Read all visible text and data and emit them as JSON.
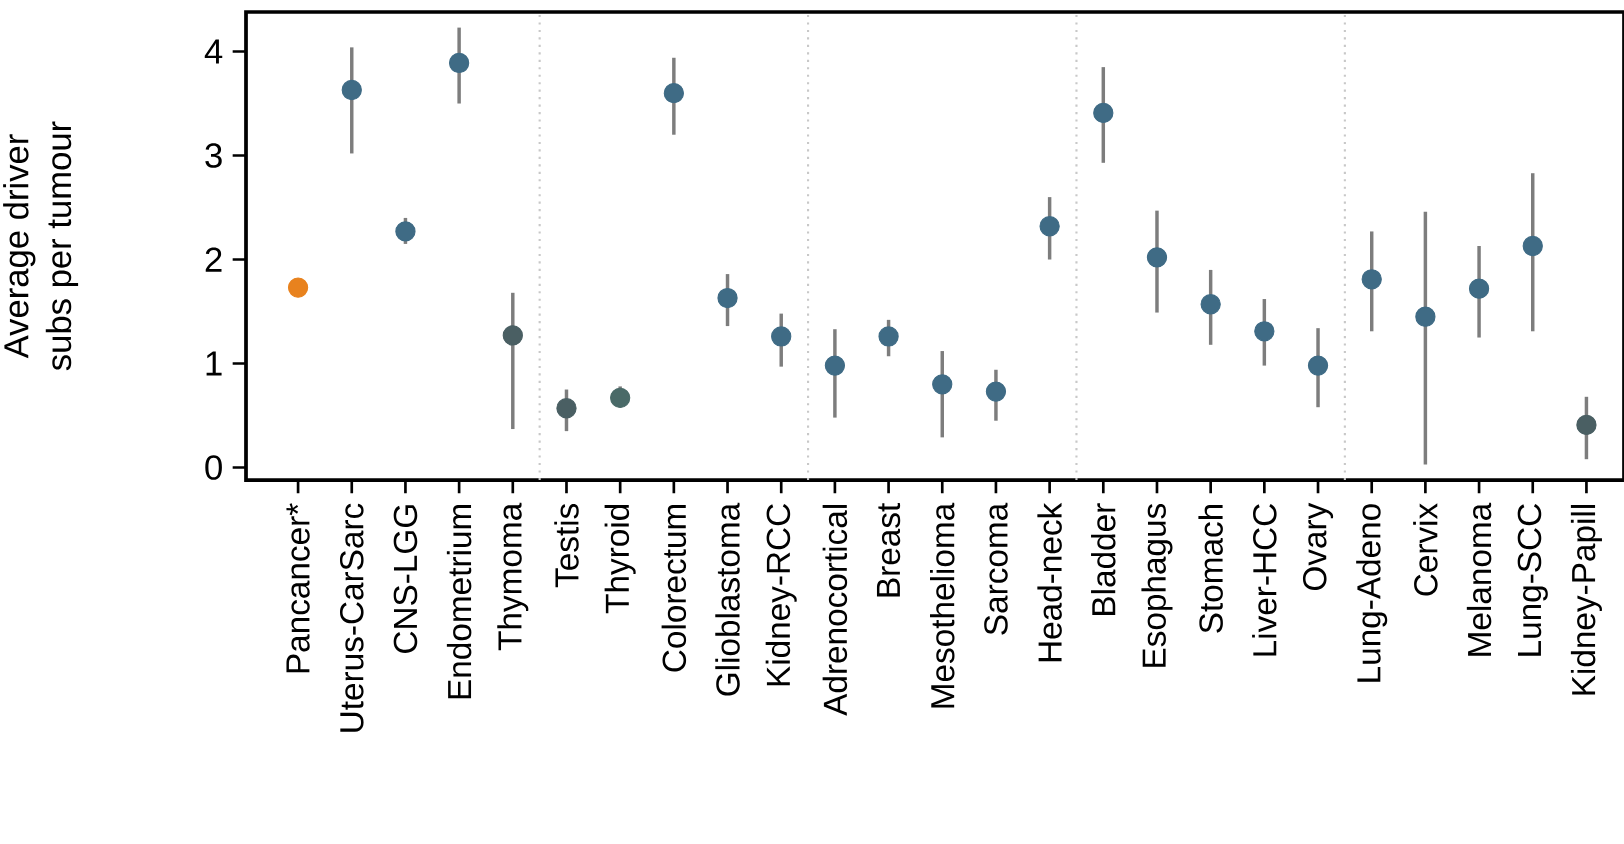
{
  "chart_data": {
    "type": "scatter",
    "ylabel": "Average driver\nsubs per tumour",
    "categories": [
      "Pancancer*",
      "Uterus-CarSarc",
      "CNS-LGG",
      "Endometrium",
      "Thymoma",
      "Testis",
      "Thyroid",
      "Colorectum",
      "Glioblastoma",
      "Kidney-RCC",
      "Adrenocortical",
      "Breast",
      "Mesothelioma",
      "Sarcoma",
      "Head-neck",
      "Bladder",
      "Esophagus",
      "Stomach",
      "Liver-HCC",
      "Ovary",
      "Lung-Adeno",
      "Cervix",
      "Melanoma",
      "Lung-SCC",
      "Kidney-Papill"
    ],
    "values": [
      1.73,
      3.63,
      2.27,
      3.89,
      1.27,
      0.57,
      0.67,
      3.6,
      1.63,
      1.26,
      0.98,
      1.26,
      0.8,
      0.73,
      2.32,
      3.41,
      2.02,
      1.57,
      1.31,
      0.98,
      1.81,
      1.45,
      1.72,
      2.13,
      0.41
    ],
    "errors": [
      null,
      [
        3.02,
        4.04
      ],
      [
        2.15,
        2.4
      ],
      [
        3.5,
        4.23
      ],
      [
        0.37,
        1.68
      ],
      [
        0.35,
        0.75
      ],
      [
        0.58,
        0.78
      ],
      [
        3.2,
        3.94
      ],
      [
        1.36,
        1.86
      ],
      [
        0.97,
        1.48
      ],
      [
        0.48,
        1.33
      ],
      [
        1.07,
        1.42
      ],
      [
        0.29,
        1.12
      ],
      [
        0.45,
        0.94
      ],
      [
        2.0,
        2.6
      ],
      [
        2.93,
        3.85
      ],
      [
        1.49,
        2.47
      ],
      [
        1.18,
        1.9
      ],
      [
        0.98,
        1.62
      ],
      [
        0.58,
        1.34
      ],
      [
        1.31,
        2.27
      ],
      [
        0.03,
        2.46
      ],
      [
        1.25,
        2.13
      ],
      [
        1.31,
        2.83
      ],
      [
        0.08,
        0.68
      ]
    ],
    "colors": [
      "#e8821e",
      "#3f6b85",
      "#3f6b85",
      "#3f6b85",
      "#4a5f63",
      "#4a5f63",
      "#4a6a68",
      "#3f6b85",
      "#3f6b85",
      "#3f6b85",
      "#3f6b85",
      "#3f6b85",
      "#3f6b85",
      "#3f6b85",
      "#3f6b85",
      "#3f6b85",
      "#3f6b85",
      "#3f6b85",
      "#3f6b85",
      "#3f6b85",
      "#3f6b85",
      "#3f6b85",
      "#3f6b85",
      "#3f6b85",
      "#4a5f63"
    ],
    "ylim": [
      -0.12,
      4.38
    ],
    "yticks": [
      0,
      1,
      2,
      3,
      4
    ],
    "grid": false
  }
}
